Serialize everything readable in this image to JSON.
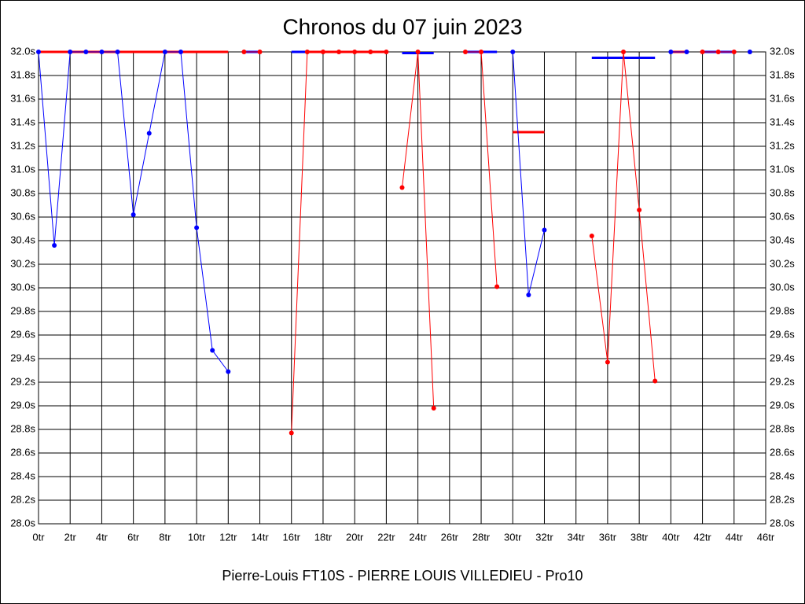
{
  "chart_data": {
    "type": "line",
    "title": "Chronos du 07 juin 2023",
    "xlabel": "Pierre-Louis FT10S - PIERRE LOUIS VILLEDIEU - Pro10",
    "xlim": [
      0,
      46
    ],
    "ylim": [
      28.0,
      32.0
    ],
    "grid": true,
    "xticks": [
      {
        "value": 0,
        "label": "0tr"
      },
      {
        "value": 2,
        "label": "2tr"
      },
      {
        "value": 4,
        "label": "4tr"
      },
      {
        "value": 6,
        "label": "6tr"
      },
      {
        "value": 8,
        "label": "8tr"
      },
      {
        "value": 10,
        "label": "10tr"
      },
      {
        "value": 12,
        "label": "12tr"
      },
      {
        "value": 14,
        "label": "14tr"
      },
      {
        "value": 16,
        "label": "16tr"
      },
      {
        "value": 18,
        "label": "18tr"
      },
      {
        "value": 20,
        "label": "20tr"
      },
      {
        "value": 22,
        "label": "22tr"
      },
      {
        "value": 24,
        "label": "24tr"
      },
      {
        "value": 26,
        "label": "26tr"
      },
      {
        "value": 28,
        "label": "28tr"
      },
      {
        "value": 30,
        "label": "30tr"
      },
      {
        "value": 32,
        "label": "32tr"
      },
      {
        "value": 34,
        "label": "34tr"
      },
      {
        "value": 36,
        "label": "36tr"
      },
      {
        "value": 38,
        "label": "38tr"
      },
      {
        "value": 40,
        "label": "40tr"
      },
      {
        "value": 42,
        "label": "42tr"
      },
      {
        "value": 44,
        "label": "44tr"
      },
      {
        "value": 46,
        "label": "46tr"
      }
    ],
    "yticks": [
      {
        "value": 28.0,
        "label": "28.0s"
      },
      {
        "value": 28.2,
        "label": "28.2s"
      },
      {
        "value": 28.4,
        "label": "28.4s"
      },
      {
        "value": 28.6,
        "label": "28.6s"
      },
      {
        "value": 28.8,
        "label": "28.8s"
      },
      {
        "value": 29.0,
        "label": "29.0s"
      },
      {
        "value": 29.2,
        "label": "29.2s"
      },
      {
        "value": 29.4,
        "label": "29.4s"
      },
      {
        "value": 29.6,
        "label": "29.6s"
      },
      {
        "value": 29.8,
        "label": "29.8s"
      },
      {
        "value": 30.0,
        "label": "30.0s"
      },
      {
        "value": 30.2,
        "label": "30.2s"
      },
      {
        "value": 30.4,
        "label": "30.4s"
      },
      {
        "value": 30.6,
        "label": "30.6s"
      },
      {
        "value": 30.8,
        "label": "30.8s"
      },
      {
        "value": 31.0,
        "label": "31.0s"
      },
      {
        "value": 31.2,
        "label": "31.2s"
      },
      {
        "value": 31.4,
        "label": "31.4s"
      },
      {
        "value": 31.6,
        "label": "31.6s"
      },
      {
        "value": 31.8,
        "label": "31.8s"
      },
      {
        "value": 32.0,
        "label": "32.0s"
      }
    ],
    "series": [
      {
        "color": "#0000ff",
        "x": [
          0,
          1,
          2,
          3,
          4,
          5,
          6,
          7,
          8,
          9,
          10,
          11,
          12
        ],
        "values": [
          32.0,
          30.36,
          32.0,
          32.0,
          32.0,
          32.0,
          30.62,
          31.31,
          32.0,
          32.0,
          30.51,
          29.47,
          29.29
        ]
      },
      {
        "color": "#ff0000",
        "x": [
          13,
          14
        ],
        "values": [
          32.0,
          32.0
        ]
      },
      {
        "color": "#ff0000",
        "x": [
          16,
          17,
          18,
          19,
          20,
          21,
          22
        ],
        "values": [
          28.77,
          32.0,
          32.0,
          32.0,
          32.0,
          32.0,
          32.0
        ]
      },
      {
        "color": "#ff0000",
        "x": [
          23,
          24,
          25
        ],
        "values": [
          30.85,
          32.0,
          28.98
        ]
      },
      {
        "color": "#ff0000",
        "x": [
          27,
          28,
          29
        ],
        "values": [
          32.0,
          32.0,
          30.01
        ]
      },
      {
        "color": "#0000ff",
        "x": [
          30,
          31,
          32
        ],
        "values": [
          32.0,
          29.94,
          30.49
        ]
      },
      {
        "color": "#ff0000",
        "x": [
          35,
          36,
          37,
          38,
          39
        ],
        "values": [
          30.44,
          29.37,
          32.0,
          30.66,
          29.21
        ]
      },
      {
        "color": "#0000ff",
        "x": [
          40,
          41
        ],
        "values": [
          32.0,
          32.0
        ]
      },
      {
        "color": "#ff0000",
        "x": [
          42,
          43,
          44
        ],
        "values": [
          32.0,
          32.0,
          32.0
        ]
      },
      {
        "color": "#0000ff",
        "x": [
          45
        ],
        "values": [
          32.0
        ]
      }
    ],
    "averages": [
      {
        "x": [
          0,
          12
        ],
        "value": 32.0,
        "color": "#ff0000"
      },
      {
        "x": [
          13,
          14
        ],
        "value": 32.0,
        "color": "#0000ff"
      },
      {
        "x": [
          16,
          17
        ],
        "value": 32.0,
        "color": "#0000ff"
      },
      {
        "x": [
          17,
          22
        ],
        "value": 32.0,
        "color": "#ff0000"
      },
      {
        "x": [
          23,
          25
        ],
        "value": 31.99,
        "color": "#0000ff"
      },
      {
        "x": [
          27,
          29
        ],
        "value": 32.0,
        "color": "#0000ff"
      },
      {
        "x": [
          30,
          32
        ],
        "value": 31.32,
        "color": "#ff0000"
      },
      {
        "x": [
          35,
          39
        ],
        "value": 31.95,
        "color": "#0000ff"
      },
      {
        "x": [
          40,
          41
        ],
        "value": 32.0,
        "color": "#ff0000"
      },
      {
        "x": [
          42,
          44
        ],
        "value": 32.0,
        "color": "#0000ff"
      }
    ]
  }
}
